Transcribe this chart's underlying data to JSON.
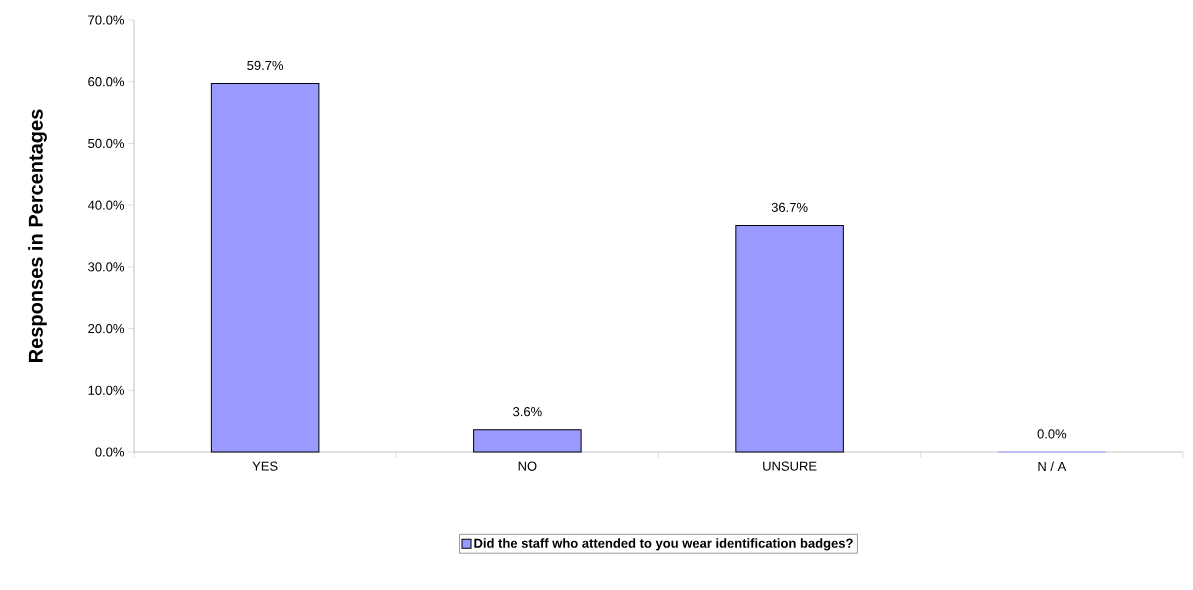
{
  "chart_data": {
    "type": "bar",
    "ylabel": "Responses in Percentages",
    "categories": [
      "YES",
      "NO",
      "UNSURE",
      "N / A"
    ],
    "series": [
      {
        "name": "Did the staff who attended to you wear identification badges?",
        "color": "#9999ff",
        "values": [
          59.7,
          3.6,
          36.7,
          0.0
        ],
        "value_labels": [
          "59.7%",
          "3.6%",
          "36.7%",
          "0.0%"
        ]
      }
    ],
    "ylim": [
      0,
      70
    ],
    "yticks": [
      {
        "value": 0,
        "label": "0.0%"
      },
      {
        "value": 10,
        "label": "10.0%"
      },
      {
        "value": 20,
        "label": "20.0%"
      },
      {
        "value": 30,
        "label": "30.0%"
      },
      {
        "value": 40,
        "label": "40.0%"
      },
      {
        "value": 50,
        "label": "50.0%"
      },
      {
        "value": 60,
        "label": "60.0%"
      },
      {
        "value": 70,
        "label": "70.0%"
      }
    ],
    "grid": false,
    "legend": "bottom"
  }
}
